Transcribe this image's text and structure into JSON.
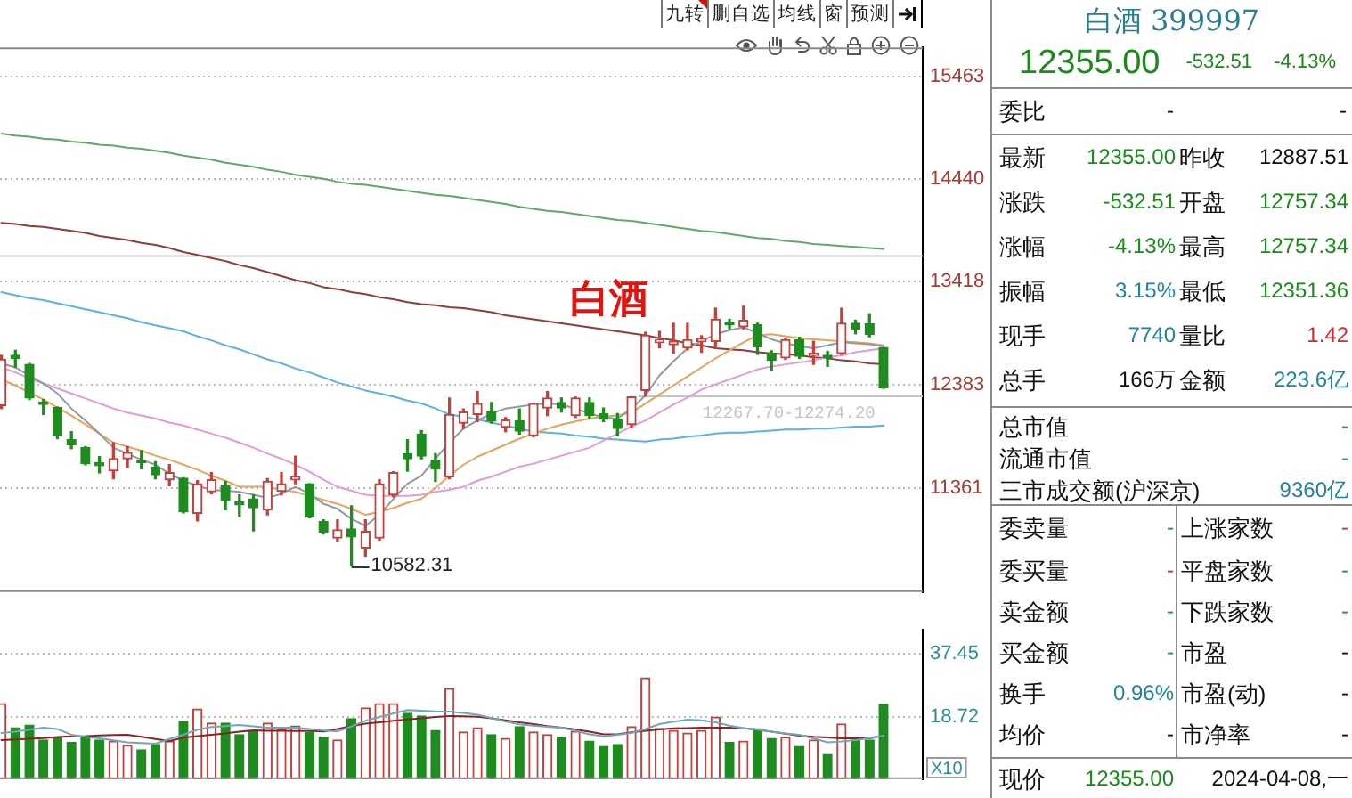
{
  "chart_data": [
    {
      "type": "other",
      "annotations": [
        "九转",
        "删自选",
        "均线",
        "窗",
        "预测"
      ]
    },
    {
      "type": "candlestick",
      "title": "白酒",
      "categories": [
        null,
        null,
        null,
        null,
        null,
        null,
        null,
        null,
        null,
        null,
        null,
        null,
        null,
        null,
        null,
        null,
        null,
        null,
        null,
        null,
        null,
        null,
        null,
        null,
        null,
        null,
        null,
        null,
        null,
        null,
        null,
        null,
        null,
        null,
        null,
        null,
        null,
        null,
        null,
        null,
        null,
        null,
        null,
        null,
        null,
        null,
        null,
        null,
        null,
        null,
        null,
        null,
        null,
        null,
        null,
        null,
        null,
        null,
        null,
        null,
        null,
        null,
        null,
        null
      ],
      "ohlc": [
        [
          12180,
          12680,
          12150,
          12640
        ],
        [
          12680,
          12730,
          12560,
          12650
        ],
        [
          12590,
          12600,
          12240,
          12255
        ],
        [
          12215,
          12240,
          12090,
          12190
        ],
        [
          12160,
          12165,
          11850,
          11880
        ],
        [
          11840,
          11920,
          11750,
          11790
        ],
        [
          11760,
          11770,
          11590,
          11600
        ],
        [
          11610,
          11670,
          11510,
          11580
        ],
        [
          11530,
          11810,
          11450,
          11650
        ],
        [
          11650,
          11770,
          11565,
          11710
        ],
        [
          11630,
          11730,
          11550,
          11610
        ],
        [
          11565,
          11620,
          11450,
          11490
        ],
        [
          11440,
          11590,
          11380,
          11510
        ],
        [
          11455,
          11460,
          11110,
          11120
        ],
        [
          11105,
          11430,
          11030,
          11400
        ],
        [
          11320,
          11510,
          11300,
          11440
        ],
        [
          11380,
          11425,
          11140,
          11235
        ],
        [
          11220,
          11290,
          11075,
          11190
        ],
        [
          11250,
          11290,
          10930,
          11160
        ],
        [
          11140,
          11450,
          11090,
          11425
        ],
        [
          11325,
          11510,
          11290,
          11400
        ],
        [
          11440,
          11675,
          11400,
          11470
        ],
        [
          11400,
          11400,
          11060,
          11065
        ],
        [
          11025,
          11040,
          10900,
          10920
        ],
        [
          10860,
          11040,
          10830,
          10940
        ],
        [
          10950,
          11180,
          10582.31,
          10870
        ],
        [
          10760,
          11040,
          10680,
          10925
        ],
        [
          10860,
          11440,
          10840,
          11400
        ],
        [
          11290,
          11520,
          11270,
          11510
        ],
        [
          11700,
          11840,
          11525,
          11650
        ],
        [
          11895,
          11930,
          11650,
          11675
        ],
        [
          11635,
          11700,
          11425,
          11550
        ],
        [
          11470,
          12255,
          11450,
          12090
        ],
        [
          12005,
          12145,
          11950,
          12115
        ],
        [
          12090,
          12320,
          12020,
          12200
        ],
        [
          12115,
          12210,
          12005,
          12025
        ],
        [
          11965,
          12060,
          11920,
          12035
        ],
        [
          12025,
          12145,
          11895,
          11925
        ],
        [
          11880,
          12200,
          11870,
          12200
        ],
        [
          12155,
          12320,
          12080,
          12255
        ],
        [
          12210,
          12255,
          12115,
          12155
        ],
        [
          12080,
          12265,
          12060,
          12255
        ],
        [
          12210,
          12255,
          12050,
          12080
        ],
        [
          12100,
          12155,
          12020,
          12045
        ],
        [
          12045,
          12100,
          11880,
          11950
        ],
        [
          11990,
          12267.7,
          11960,
          12265
        ],
        [
          12330,
          12910,
          12274.2,
          12880
        ],
        [
          12810,
          12920,
          12755,
          12835
        ],
        [
          12785,
          13000,
          12700,
          12820
        ],
        [
          12755,
          13000,
          12735,
          12835
        ],
        [
          12820,
          12875,
          12710,
          12845
        ],
        [
          12820,
          13150,
          12750,
          13040
        ],
        [
          13010,
          13040,
          12945,
          12985
        ],
        [
          12965,
          13170,
          12945,
          13030
        ],
        [
          12985,
          13000,
          12690,
          12765
        ],
        [
          12700,
          12725,
          12530,
          12630
        ],
        [
          12655,
          12850,
          12640,
          12835
        ],
        [
          12835,
          12860,
          12650,
          12670
        ],
        [
          12680,
          12820,
          12590,
          12700
        ],
        [
          12680,
          12720,
          12570,
          12655
        ],
        [
          12700,
          13150,
          12690,
          13000
        ],
        [
          13000,
          13030,
          12895,
          12940
        ],
        [
          12995,
          13095,
          12865,
          12887.51
        ],
        [
          12757.34,
          12757.34,
          12351.36,
          12355
        ]
      ],
      "colors": [
        "#c8403c",
        "#1e8c1e",
        "#1e8c1e",
        "#1e8c1e",
        "#1e8c1e",
        "#1e8c1e",
        "#1e8c1e",
        "#1e8c1e",
        "#c8403c",
        "#c8403c",
        "#1e8c1e",
        "#1e8c1e",
        "#c8403c",
        "#1e8c1e",
        "#c8403c",
        "#c8403c",
        "#1e8c1e",
        "#1e8c1e",
        "#1e8c1e",
        "#c8403c",
        "#c8403c",
        "#c8403c",
        "#1e8c1e",
        "#1e8c1e",
        "#c8403c",
        "#1e8c1e",
        "#c8403c",
        "#c8403c",
        "#c8403c",
        "#1e8c1e",
        "#1e8c1e",
        "#1e8c1e",
        "#c8403c",
        "#c8403c",
        "#c8403c",
        "#1e8c1e",
        "#c8403c",
        "#1e8c1e",
        "#c8403c",
        "#c8403c",
        "#1e8c1e",
        "#c8403c",
        "#1e8c1e",
        "#1e8c1e",
        "#1e8c1e",
        "#c8403c",
        "#c8403c",
        "#c8403c",
        "#c8403c",
        "#c8403c",
        "#c8403c",
        "#c8403c",
        "#1e8c1e",
        "#c8403c",
        "#1e8c1e",
        "#1e8c1e",
        "#c8403c",
        "#1e8c1e",
        "#c8403c",
        "#1e8c1e",
        "#c8403c",
        "#1e8c1e",
        "#1e8c1e",
        "#1e8c1e"
      ],
      "series": [
        {
          "type": "line",
          "color": "#8e9aa6",
          "values": [
            12600,
            12560,
            12480,
            12400,
            12300,
            12150,
            12030,
            11900,
            11760,
            11700,
            11640,
            11590,
            11500,
            11430,
            11380,
            11340,
            11330,
            11320,
            11290,
            11260,
            11300,
            11370,
            11300,
            11200,
            11150,
            11050,
            10980,
            11090,
            11250,
            11400,
            11480,
            11650,
            11810,
            11950,
            12030,
            12100,
            12150,
            12170,
            12190,
            12200,
            12190,
            12150,
            12100,
            12060,
            12050,
            12150,
            12280,
            12480,
            12620,
            12750,
            12820,
            12890,
            12930,
            12960,
            12900,
            12840,
            12800,
            12770,
            12750,
            12780,
            12810,
            12800,
            12790,
            12770
          ]
        },
        {
          "type": "line",
          "color": "#e9a25a",
          "values": [
            12440,
            12380,
            12310,
            12240,
            12160,
            12080,
            11990,
            11900,
            11810,
            11770,
            11730,
            11680,
            11640,
            11590,
            11540,
            11480,
            11430,
            11370,
            11370,
            11370,
            11340,
            11320,
            11280,
            11240,
            11200,
            11150,
            11090,
            11120,
            11160,
            11210,
            11250,
            11360,
            11480,
            11590,
            11670,
            11730,
            11790,
            11850,
            11900,
            11950,
            11990,
            12020,
            12050,
            12070,
            12080,
            12110,
            12200,
            12290,
            12380,
            12470,
            12560,
            12650,
            12730,
            12810,
            12880,
            12890,
            12870,
            12850,
            12840,
            12830,
            12820,
            12810,
            12800,
            12780
          ]
        },
        {
          "type": "line",
          "color": "#e29ad9",
          "values": [
            12560,
            12510,
            12450,
            12400,
            12350,
            12300,
            12250,
            12200,
            12150,
            12110,
            12080,
            12050,
            12010,
            11980,
            11940,
            11900,
            11860,
            11810,
            11760,
            11700,
            11650,
            11590,
            11520,
            11440,
            11370,
            11330,
            11290,
            11280,
            11280,
            11280,
            11290,
            11320,
            11340,
            11370,
            11430,
            11470,
            11520,
            11570,
            11600,
            11640,
            11680,
            11720,
            11760,
            11830,
            11900,
            11970,
            12030,
            12110,
            12190,
            12260,
            12340,
            12390,
            12440,
            12490,
            12540,
            12570,
            12590,
            12610,
            12630,
            12660,
            12680,
            12710,
            12730,
            12750
          ]
        },
        {
          "type": "line",
          "color": "#5db0e4",
          "values": [
            13310,
            13280,
            13250,
            13230,
            13200,
            13170,
            13140,
            13110,
            13080,
            13050,
            13010,
            12980,
            12950,
            12920,
            12870,
            12830,
            12780,
            12740,
            12690,
            12640,
            12600,
            12550,
            12510,
            12460,
            12410,
            12370,
            12330,
            12300,
            12270,
            12230,
            12200,
            12150,
            12090,
            12070,
            12040,
            12010,
            11980,
            11950,
            11920,
            11910,
            11900,
            11880,
            11870,
            11850,
            11840,
            11830,
            11820,
            11840,
            11850,
            11870,
            11880,
            11900,
            11910,
            11910,
            11920,
            11930,
            11940,
            11940,
            11950,
            11950,
            11960,
            11970,
            11970,
            11980
          ]
        },
        {
          "type": "line",
          "color": "#8e3b3b",
          "values": [
            14000,
            13990,
            13970,
            13960,
            13940,
            13920,
            13900,
            13870,
            13850,
            13830,
            13800,
            13780,
            13750,
            13710,
            13680,
            13650,
            13620,
            13580,
            13550,
            13510,
            13470,
            13430,
            13400,
            13360,
            13340,
            13310,
            13290,
            13260,
            13240,
            13210,
            13190,
            13180,
            13160,
            13150,
            13130,
            13110,
            13080,
            13060,
            13040,
            13020,
            13000,
            12980,
            12960,
            12940,
            12920,
            12900,
            12880,
            12850,
            12830,
            12800,
            12780,
            12750,
            12740,
            12730,
            12710,
            12700,
            12690,
            12680,
            12660,
            12650,
            12630,
            12620,
            12600,
            12590
          ]
        },
        {
          "type": "line",
          "color": "#62a862",
          "values": [
            14890,
            14870,
            14860,
            14840,
            14830,
            14810,
            14800,
            14780,
            14770,
            14750,
            14740,
            14720,
            14700,
            14670,
            14650,
            14630,
            14600,
            14580,
            14560,
            14530,
            14510,
            14480,
            14460,
            14440,
            14410,
            14390,
            14380,
            14360,
            14340,
            14320,
            14300,
            14280,
            14270,
            14250,
            14230,
            14210,
            14190,
            14160,
            14140,
            14120,
            14110,
            14090,
            14070,
            14050,
            14030,
            14020,
            14000,
            13980,
            13960,
            13940,
            13920,
            13910,
            13890,
            13870,
            13850,
            13840,
            13820,
            13810,
            13790,
            13780,
            13770,
            13760,
            13750,
            13740
          ]
        }
      ],
      "ylim": [
        10320,
        15750
      ],
      "yticks": [
        11361,
        12383,
        13418,
        14440,
        15463
      ],
      "grid": "y",
      "tick_labels": "y",
      "ref_lines": [
        {
          "axis": "y",
          "value": 13670,
          "color": "#c8c8c8"
        }
      ],
      "bands": [
        {
          "axis": "y",
          "from": 12267.7,
          "to": 12274.2,
          "label": "12267.70-12274.20",
          "color": "#c4c4c4"
        }
      ],
      "annotations": [
        "10582.31"
      ]
    },
    {
      "type": "bar",
      "categories": [
        null,
        null,
        null,
        null,
        null,
        null,
        null,
        null,
        null,
        null,
        null,
        null,
        null,
        null,
        null,
        null,
        null,
        null,
        null,
        null,
        null,
        null,
        null,
        null,
        null,
        null,
        null,
        null,
        null,
        null,
        null,
        null,
        null,
        null,
        null,
        null,
        null,
        null,
        null,
        null,
        null,
        null,
        null,
        null,
        null,
        null,
        null,
        null,
        null,
        null,
        null,
        null,
        null,
        null,
        null,
        null,
        null,
        null,
        null,
        null,
        null,
        null,
        null,
        null
      ],
      "series": [
        {
          "type": "bar",
          "values": [
            22.6,
            15.4,
            16.2,
            11.7,
            12.6,
            11.0,
            12.6,
            11.7,
            11.4,
            10.1,
            8.8,
            10.4,
            11.4,
            17.3,
            21.0,
            16.8,
            16.8,
            13.3,
            14.3,
            16.8,
            14.9,
            15.9,
            14.0,
            12.6,
            11.7,
            18.1,
            21.3,
            22.6,
            22.6,
            19.7,
            18.9,
            14.6,
            27.1,
            14.1,
            15.4,
            13.3,
            12.2,
            15.7,
            14.1,
            13.3,
            12.6,
            14.3,
            11.4,
            9.8,
            10.4,
            15.7,
            30.3,
            15.2,
            14.6,
            13.8,
            14.6,
            18.6,
            11.0,
            11.4,
            15.1,
            12.2,
            12.6,
            9.8,
            11.7,
            7.4,
            16.5,
            11.7,
            11.7,
            22.4
          ],
          "colors": [
            "#c8403c",
            "#1e8c1e",
            "#1e8c1e",
            "#1e8c1e",
            "#1e8c1e",
            "#1e8c1e",
            "#1e8c1e",
            "#1e8c1e",
            "#c8403c",
            "#c8403c",
            "#1e8c1e",
            "#1e8c1e",
            "#c8403c",
            "#1e8c1e",
            "#c8403c",
            "#c8403c",
            "#1e8c1e",
            "#1e8c1e",
            "#1e8c1e",
            "#c8403c",
            "#c8403c",
            "#c8403c",
            "#1e8c1e",
            "#1e8c1e",
            "#c8403c",
            "#1e8c1e",
            "#c8403c",
            "#c8403c",
            "#c8403c",
            "#1e8c1e",
            "#1e8c1e",
            "#1e8c1e",
            "#c8403c",
            "#c8403c",
            "#c8403c",
            "#1e8c1e",
            "#c8403c",
            "#1e8c1e",
            "#c8403c",
            "#c8403c",
            "#1e8c1e",
            "#c8403c",
            "#1e8c1e",
            "#1e8c1e",
            "#1e8c1e",
            "#c8403c",
            "#c8403c",
            "#c8403c",
            "#c8403c",
            "#c8403c",
            "#c8403c",
            "#c8403c",
            "#1e8c1e",
            "#c8403c",
            "#1e8c1e",
            "#1e8c1e",
            "#c8403c",
            "#1e8c1e",
            "#c8403c",
            "#1e8c1e",
            "#c8403c",
            "#1e8c1e",
            "#1e8c1e",
            "#1e8c1e"
          ]
        },
        {
          "type": "line",
          "color": "#6fa8b8",
          "values": [
            13.8,
            14.2,
            14.8,
            15.4,
            15.0,
            13.3,
            12.7,
            12.2,
            11.6,
            11.0,
            10.8,
            10.6,
            12.0,
            13.3,
            14.8,
            15.6,
            15.9,
            16.2,
            15.8,
            15.4,
            15.4,
            15.4,
            15.0,
            14.6,
            14.3,
            15.8,
            17.5,
            18.6,
            19.7,
            20.7,
            20.5,
            20.3,
            20.2,
            19.8,
            19.3,
            18.3,
            17.3,
            16.4,
            16.0,
            15.7,
            15.4,
            14.5,
            13.4,
            12.8,
            13.3,
            13.8,
            15.0,
            16.5,
            17.2,
            17.8,
            17.6,
            17.0,
            16.0,
            15.3,
            14.8,
            14.2,
            13.7,
            13.3,
            12.2,
            11.0,
            11.3,
            11.7,
            12.3,
            13.0
          ]
        },
        {
          "type": "line",
          "color": "#8b2323",
          "values": [
            11.7,
            11.9,
            12.1,
            12.3,
            12.6,
            12.8,
            12.9,
            13.1,
            13.2,
            13.3,
            12.7,
            12.0,
            11.4,
            12.4,
            12.9,
            13.3,
            13.7,
            14.2,
            14.6,
            14.5,
            14.5,
            14.4,
            14.4,
            14.3,
            15.0,
            15.9,
            16.6,
            17.0,
            17.5,
            17.9,
            18.2,
            18.6,
            18.9,
            18.8,
            18.7,
            18.2,
            17.6,
            17.0,
            16.5,
            15.9,
            15.4,
            14.9,
            14.2,
            13.4,
            13.4,
            14.0,
            14.5,
            14.9,
            15.2,
            15.3,
            15.4,
            15.4,
            15.4,
            15.2,
            14.8,
            14.2,
            13.6,
            13.0,
            12.7,
            12.5,
            12.2,
            12.2,
            12.2,
            13.0
          ]
        }
      ],
      "ylim": [
        0,
        44.7
      ],
      "yticks": [
        18.72,
        37.45
      ],
      "ylabel": "X10",
      "grid": "y",
      "tick_labels": "y"
    },
    {
      "type": "other",
      "title": "白酒 399997",
      "annotations": [
        "12355.00",
        "-532.51",
        "-4.13%",
        "委比",
        "-",
        "-",
        "最新",
        "12355.00",
        "昨收",
        "12887.51",
        "涨跌",
        "-532.51",
        "开盘",
        "12757.34",
        "涨幅",
        "-4.13%",
        "最高",
        "12757.34",
        "振幅",
        "3.15%",
        "最低",
        "12351.36",
        "现手",
        "7740",
        "量比",
        "1.42",
        "总手",
        "166万",
        "金额",
        "223.6亿",
        "总市值",
        "-",
        "流通市值",
        "-",
        "三市成交额(沪深京)",
        "9360亿",
        "委卖量",
        "-",
        "上涨家数",
        "-",
        "委买量",
        "-",
        "平盘家数",
        "-",
        "卖金额",
        "-",
        "下跌家数",
        "-",
        "买金额",
        "-",
        "市盈",
        "-",
        "换手",
        "0.96%",
        "市盈(动)",
        "-",
        "均价",
        "-",
        "市净率",
        "-",
        "现价",
        "12355.00",
        "2024-04-08,一"
      ],
      "colors": [
        "#1a8a1a",
        "#1a8a1a",
        "#1a8a1a",
        "#111111",
        "#111111",
        "#111111",
        "#111111",
        "#1a8a1a",
        "#111111",
        "#111111",
        "#111111",
        "#1a8a1a",
        "#111111",
        "#1a8a1a",
        "#111111",
        "#1a8a1a",
        "#111111",
        "#1a8a1a",
        "#111111",
        "#1f8596",
        "#111111",
        "#1a8a1a",
        "#111111",
        "#1f8596",
        "#111111",
        "#d42a2a",
        "#111111",
        "#111111",
        "#111111",
        "#1f8596",
        "#111111",
        "#1f8596",
        "#111111",
        "#1f8596",
        "#111111",
        "#1f8596",
        "#111111",
        "#1f8596",
        "#111111",
        "#d42a2a",
        "#111111",
        "#d42a2a",
        "#111111",
        "#1f8596",
        "#111111",
        "#1f8596",
        "#111111",
        "#1f8596",
        "#111111",
        "#1f8596",
        "#111111",
        "#111111",
        "#111111",
        "#1f8596",
        "#111111",
        "#111111",
        "#111111",
        "#111111",
        "#111111",
        "#111111",
        "#111111",
        "#1a8a1a",
        "#111111"
      ]
    }
  ]
}
